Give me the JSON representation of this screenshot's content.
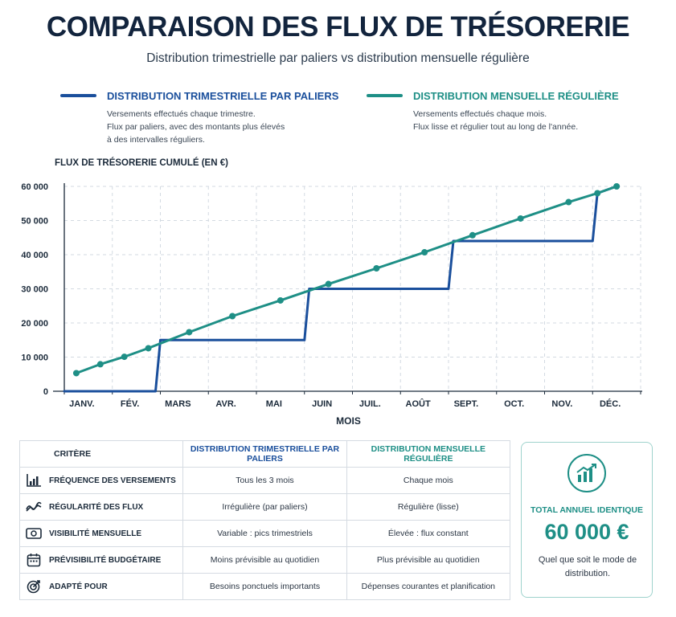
{
  "header": {
    "title": "COMPARAISON DES FLUX DE TRÉSORERIE",
    "subtitle": "Distribution trimestrielle par paliers vs distribution mensuelle régulière"
  },
  "legend": {
    "quarterly": {
      "title": "DISTRIBUTION TRIMESTRIELLE PAR PALIERS",
      "lines": [
        "Versements effectués chaque trimestre.",
        "Flux par paliers, avec des montants plus élevés",
        "à des intervalles réguliers."
      ]
    },
    "monthly": {
      "title": "DISTRIBUTION MENSUELLE RÉGULIÈRE",
      "lines": [
        "Versements effectués chaque mois.",
        "Flux lisse et régulier tout au long de l'année."
      ]
    }
  },
  "colors": {
    "quarterly": "#1a4f9c",
    "monthly": "#1e8f86",
    "title": "#12243d"
  },
  "chart_data": {
    "type": "line",
    "ylabel": "FLUX DE TRÉSORERIE CUMULÉ (EN €)",
    "xlabel": "MOIS",
    "ylim": [
      0,
      60000
    ],
    "yticks": [
      0,
      10000,
      20000,
      30000,
      40000,
      50000,
      60000
    ],
    "ytick_labels": [
      "0",
      "10 000",
      "20 000",
      "30 000",
      "40 000",
      "50 000",
      "60 000"
    ],
    "categories": [
      "JANV.",
      "FÉV.",
      "MARS",
      "AVR.",
      "MAI",
      "JUIN",
      "JUIL.",
      "AOÛT",
      "SEPT.",
      "OCT.",
      "NOV.",
      "DÉC."
    ],
    "grid": true,
    "series": [
      {
        "name": "DISTRIBUTION TRIMESTRIELLE PAR PALIERS",
        "style": "step",
        "points": [
          [
            0,
            0
          ],
          [
            1.9,
            0
          ],
          [
            2,
            15000
          ],
          [
            5,
            15000
          ],
          [
            5.1,
            30000
          ],
          [
            8,
            30000
          ],
          [
            8.1,
            44000
          ],
          [
            11,
            44000
          ],
          [
            11.1,
            58000
          ],
          [
            11.5,
            60000
          ]
        ]
      },
      {
        "name": "DISTRIBUTION MENSUELLE RÉGULIÈRE",
        "style": "line-markers",
        "points": [
          [
            0.25,
            5300
          ],
          [
            0.75,
            7900
          ],
          [
            1.25,
            10100
          ],
          [
            1.75,
            12600
          ],
          [
            2.6,
            17300
          ],
          [
            3.5,
            22000
          ],
          [
            4.5,
            26600
          ],
          [
            5.5,
            31400
          ],
          [
            6.5,
            36000
          ],
          [
            7.5,
            40700
          ],
          [
            8.5,
            45700
          ],
          [
            9.5,
            50600
          ],
          [
            10.5,
            55400
          ],
          [
            11.1,
            58000
          ],
          [
            11.5,
            60000
          ]
        ]
      }
    ]
  },
  "table": {
    "headers": [
      "CRITÈRE",
      "DISTRIBUTION TRIMESTRIELLE PAR PALIERS",
      "DISTRIBUTION MENSUELLE RÉGULIÈRE"
    ],
    "rows": [
      {
        "icon": "bar-chart-icon",
        "criterion": "FRÉQUENCE DES VERSEMENTS",
        "quarterly": "Tous les 3 mois",
        "monthly": "Chaque mois"
      },
      {
        "icon": "wave-trend-icon",
        "criterion": "RÉGULARITÉ DES FLUX",
        "quarterly": "Irrégulière (par paliers)",
        "monthly": "Régulière (lisse)"
      },
      {
        "icon": "banknote-icon",
        "criterion": "VISIBILITÉ MENSUELLE",
        "quarterly": "Variable : pics trimestriels",
        "monthly": "Élevée : flux constant"
      },
      {
        "icon": "calendar-icon",
        "criterion": "PRÉVISIBILITÉ BUDGÉTAIRE",
        "quarterly": "Moins prévisible au quotidien",
        "monthly": "Plus prévisible au quotidien"
      },
      {
        "icon": "target-icon",
        "criterion": "ADAPTÉ POUR",
        "quarterly": "Besoins ponctuels importants",
        "monthly": "Dépenses courantes et planification"
      }
    ]
  },
  "summary": {
    "icon": "growth-chart-icon",
    "label": "TOTAL ANNUEL IDENTIQUE",
    "value": "60 000 €",
    "note": "Quel que soit le mode de distribution."
  }
}
